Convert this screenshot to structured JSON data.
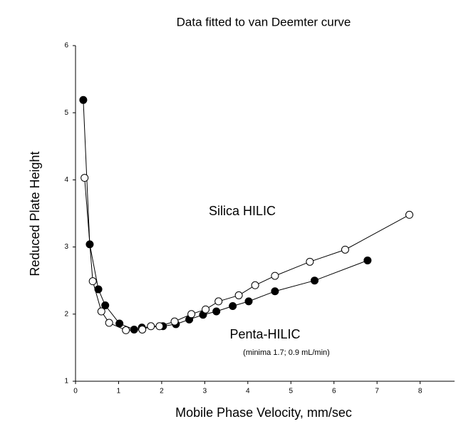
{
  "chart_data": {
    "type": "scatter",
    "title": "Data fitted to van Deemter curve",
    "x_label": "Mobile Phase Velocity, mm/sec",
    "y_label": "Reduced Plate Height",
    "annotations": [
      "Silica HILIC",
      "Penta-HILIC",
      "(minima 1.7; 0.9 mL/min)"
    ],
    "xlim": [
      0,
      8.8
    ],
    "ylim": [
      1,
      6
    ],
    "xticks": [
      0,
      1,
      2,
      3,
      4,
      5,
      6,
      7,
      8
    ],
    "yticks": [
      1,
      2,
      3,
      4,
      5,
      6
    ],
    "series": [
      {
        "name": "Penta-HILIC",
        "color": "#000000",
        "marker": "filled",
        "x": [
          0.18,
          0.33,
          0.53,
          0.69,
          1.02,
          1.36,
          1.54,
          2.03,
          2.33,
          2.64,
          2.96,
          3.27,
          3.65,
          4.02,
          4.63,
          5.55,
          6.78
        ],
        "values": [
          5.19,
          3.04,
          2.37,
          2.13,
          1.86,
          1.77,
          1.8,
          1.82,
          1.85,
          1.92,
          1.99,
          2.04,
          2.12,
          2.19,
          2.34,
          2.5,
          2.8
        ]
      },
      {
        "name": "Silica HILIC",
        "color": "#000000",
        "marker": "open",
        "x": [
          0.21,
          0.4,
          0.6,
          0.78,
          1.17,
          1.55,
          1.75,
          1.95,
          2.3,
          2.69,
          3.02,
          3.32,
          3.79,
          4.17,
          4.63,
          5.44,
          6.26,
          7.75
        ],
        "values": [
          4.03,
          2.49,
          2.04,
          1.87,
          1.76,
          1.77,
          1.82,
          1.82,
          1.89,
          2.0,
          2.07,
          2.19,
          2.28,
          2.43,
          2.57,
          2.78,
          2.96,
          3.48
        ]
      }
    ]
  }
}
